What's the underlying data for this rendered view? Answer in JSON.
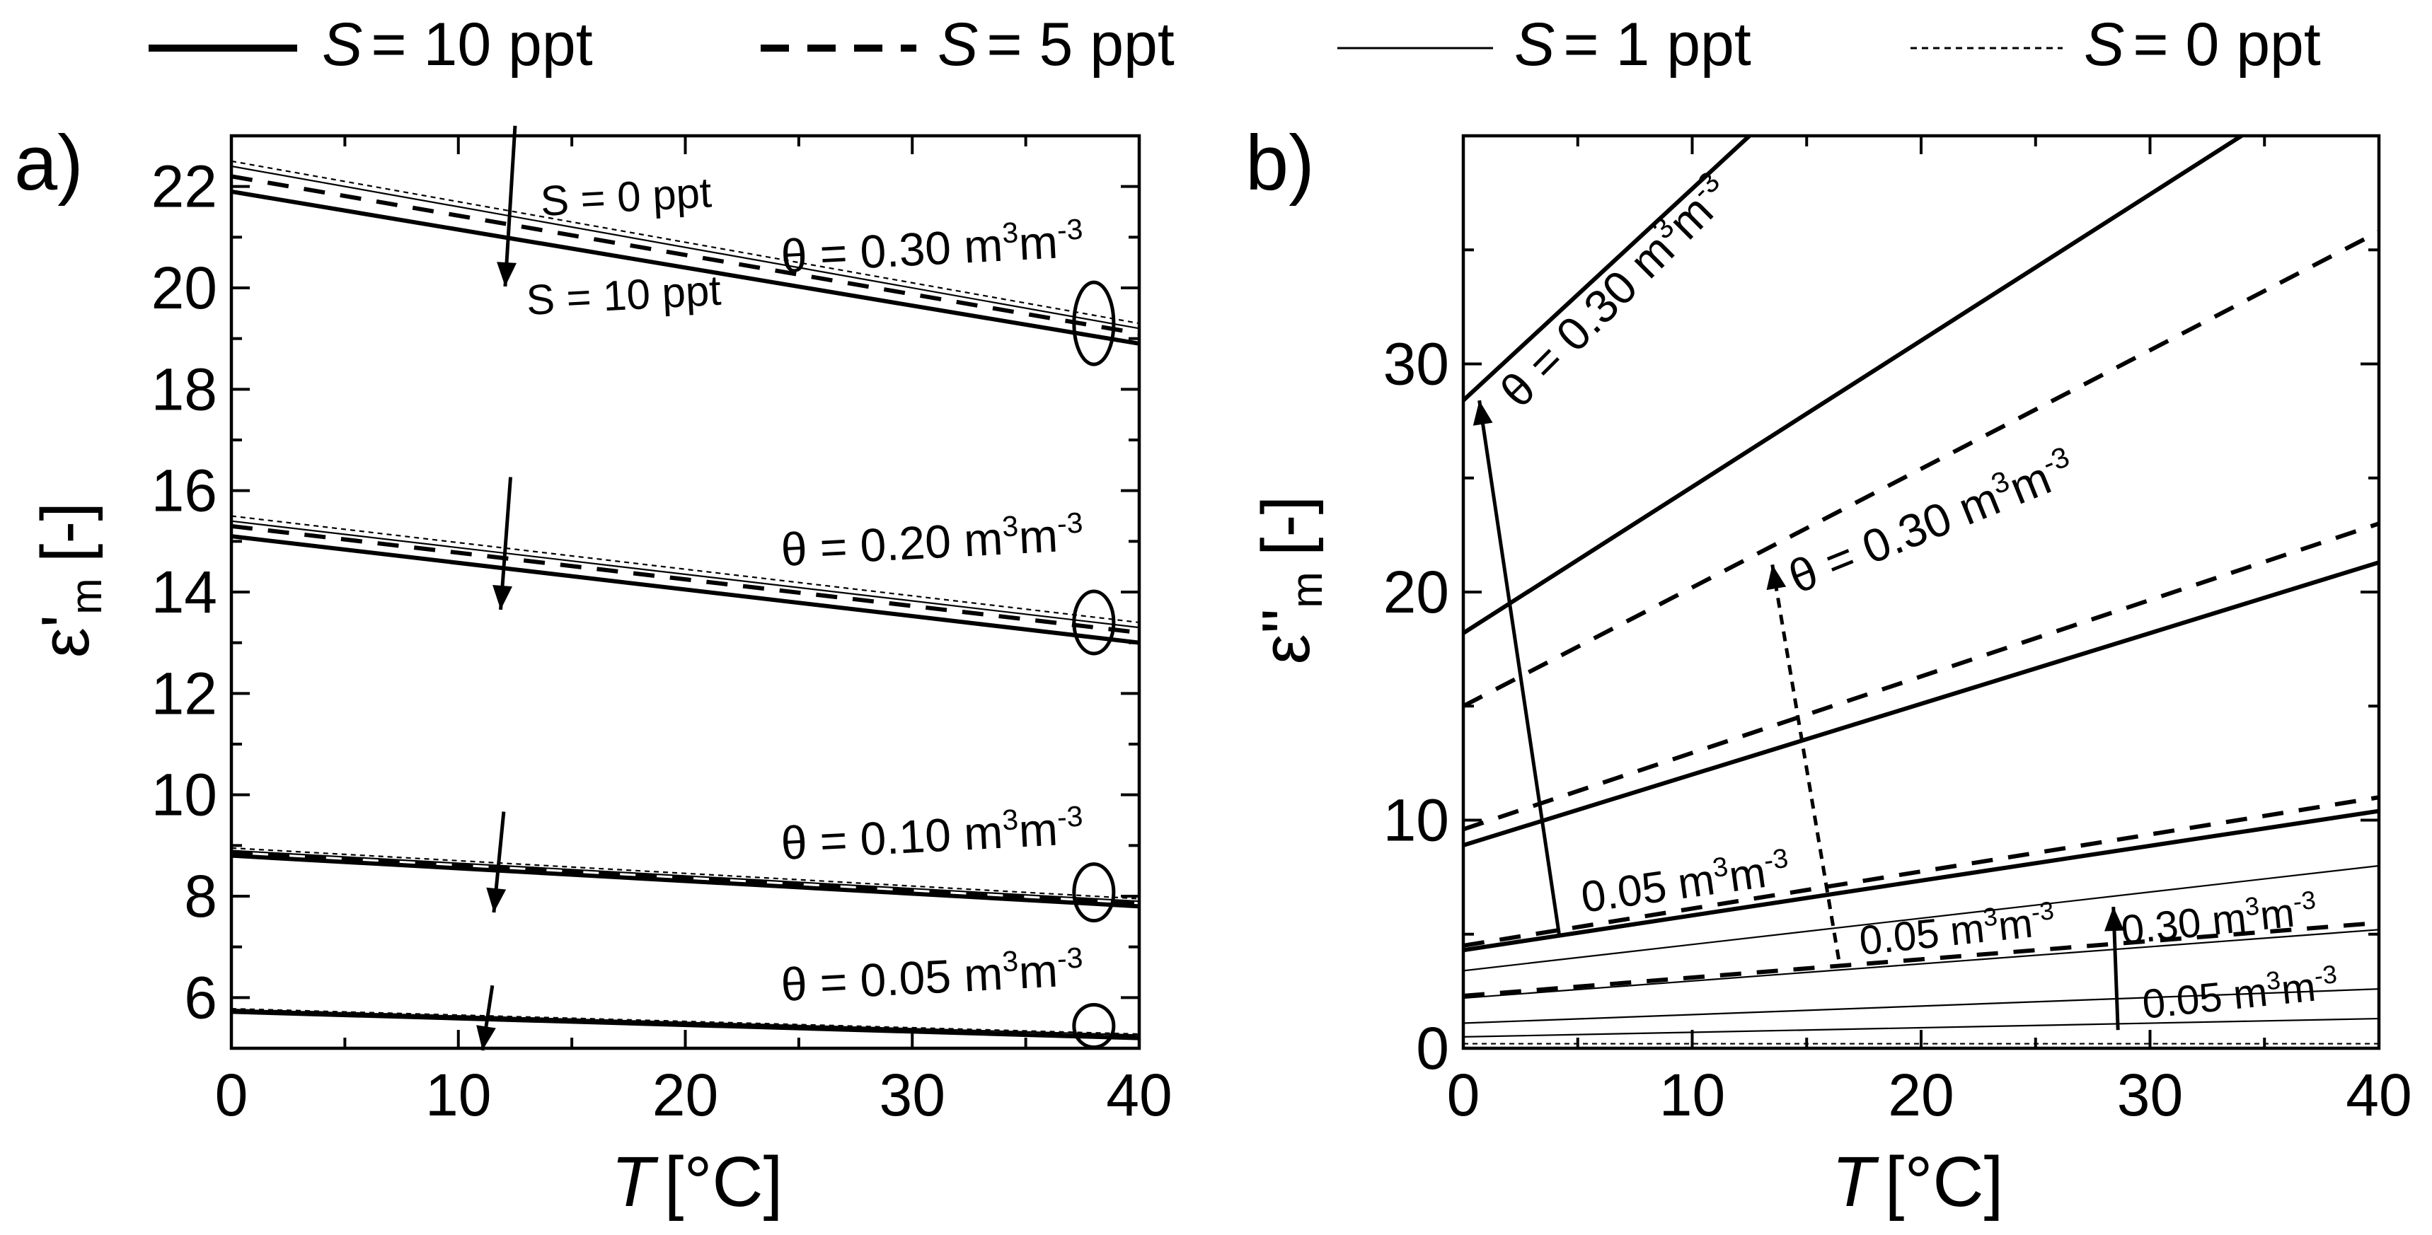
{
  "legend": {
    "items": [
      {
        "var": "S",
        "eq": "= 10 ppt",
        "style": "thick-solid"
      },
      {
        "var": "S",
        "eq": "= 5 ppt",
        "style": "thick-dashed"
      },
      {
        "var": "S",
        "eq": "= 1 ppt",
        "style": "thin-solid"
      },
      {
        "var": "S",
        "eq": "= 0 ppt",
        "style": "thin-dotted"
      }
    ]
  },
  "chart_data": [
    {
      "type": "line",
      "panel_label": "a)",
      "xlabel_var": "T",
      "xlabel_unit": "[°C]",
      "ylabel_sym": "ε'",
      "ylabel_sub": "m",
      "ylabel_unit": "[-]",
      "xlim": [
        0,
        40
      ],
      "ylim": [
        5,
        23
      ],
      "xticks": [
        "0",
        "10",
        "20",
        "30",
        "40"
      ],
      "yticks": [
        "6",
        "8",
        "10",
        "12",
        "14",
        "16",
        "18",
        "20",
        "22"
      ],
      "x": [
        0,
        40
      ],
      "groups": [
        {
          "theta_label": "θ = 0.30 m³m⁻³",
          "series": [
            {
              "name": "S = 10 ppt",
              "values": [
                21.9,
                18.9
              ]
            },
            {
              "name": "S = 5 ppt",
              "values": [
                22.2,
                19.1
              ]
            },
            {
              "name": "S = 1 ppt",
              "values": [
                22.4,
                19.2
              ]
            },
            {
              "name": "S = 0 ppt",
              "values": [
                22.5,
                19.3
              ]
            }
          ]
        },
        {
          "theta_label": "θ = 0.20 m³m⁻³",
          "series": [
            {
              "name": "S = 10 ppt",
              "values": [
                15.1,
                13.0
              ]
            },
            {
              "name": "S = 5 ppt",
              "values": [
                15.3,
                13.2
              ]
            },
            {
              "name": "S = 1 ppt",
              "values": [
                15.4,
                13.3
              ]
            },
            {
              "name": "S = 0 ppt",
              "values": [
                15.5,
                13.4
              ]
            }
          ]
        },
        {
          "theta_label": "θ = 0.10 m³m⁻³",
          "series": [
            {
              "name": "S = 10 ppt",
              "values": [
                8.8,
                7.8
              ]
            },
            {
              "name": "S = 5 ppt",
              "values": [
                8.85,
                7.85
              ]
            },
            {
              "name": "S = 1 ppt",
              "values": [
                8.9,
                7.9
              ]
            },
            {
              "name": "S = 0 ppt",
              "values": [
                8.95,
                7.95
              ]
            }
          ]
        },
        {
          "theta_label": "θ = 0.05 m³m⁻³",
          "series": [
            {
              "name": "S = 10 ppt",
              "values": [
                5.72,
                5.2
              ]
            },
            {
              "name": "S = 5 ppt",
              "values": [
                5.74,
                5.23
              ]
            },
            {
              "name": "S = 1 ppt",
              "values": [
                5.76,
                5.26
              ]
            },
            {
              "name": "S = 0 ppt",
              "values": [
                5.78,
                5.28
              ]
            }
          ]
        }
      ],
      "annotations": [
        {
          "text": "S = 0 ppt"
        },
        {
          "text": "S = 10 ppt"
        }
      ]
    },
    {
      "type": "line",
      "panel_label": "b)",
      "xlabel_var": "T",
      "xlabel_unit": "[°C]",
      "ylabel_sym": "ε''",
      "ylabel_sub": "m",
      "ylabel_unit": "[-]",
      "xlim": [
        0,
        40
      ],
      "ylim": [
        0,
        40
      ],
      "xticks": [
        "0",
        "10",
        "20",
        "30",
        "40"
      ],
      "yticks": [
        "0",
        "10",
        "20",
        "30"
      ],
      "series": [
        {
          "name": "S = 10 ppt, θ = 0.30",
          "x": [
            0,
            12.5
          ],
          "values": [
            28.4,
            40
          ]
        },
        {
          "name": "S = 10 ppt, θ = 0.20",
          "x": [
            0,
            34
          ],
          "values": [
            18.2,
            40
          ]
        },
        {
          "name": "S = 10 ppt, θ = 0.10",
          "x": [
            0,
            40
          ],
          "values": [
            8.9,
            21.3
          ]
        },
        {
          "name": "S = 10 ppt, θ = 0.05",
          "x": [
            0,
            40
          ],
          "values": [
            4.3,
            10.4
          ]
        },
        {
          "name": "S = 5 ppt, θ = 0.30",
          "x": [
            0,
            40
          ],
          "values": [
            15.0,
            35.8
          ]
        },
        {
          "name": "S = 5 ppt, θ = 0.20",
          "x": [
            0,
            40
          ],
          "values": [
            9.6,
            23.0
          ]
        },
        {
          "name": "S = 5 ppt, θ = 0.10",
          "x": [
            0,
            40
          ],
          "values": [
            4.5,
            11.0
          ]
        },
        {
          "name": "S = 5 ppt, θ = 0.05",
          "x": [
            0,
            40
          ],
          "values": [
            2.3,
            5.5
          ]
        },
        {
          "name": "S = 1 ppt, θ = 0.30",
          "x": [
            0,
            40
          ],
          "values": [
            3.4,
            8.0
          ]
        },
        {
          "name": "S = 1 ppt, θ = 0.20",
          "x": [
            0,
            40
          ],
          "values": [
            2.2,
            5.2
          ]
        },
        {
          "name": "S = 1 ppt, θ = 0.10",
          "x": [
            0,
            40
          ],
          "values": [
            1.1,
            2.6
          ]
        },
        {
          "name": "S = 1 ppt, θ = 0.05",
          "x": [
            0,
            40
          ],
          "values": [
            0.5,
            1.3
          ]
        },
        {
          "name": "S = 0 ppt",
          "x": [
            0,
            40
          ],
          "values": [
            0.2,
            0.2
          ]
        }
      ],
      "annotations": [
        {
          "text": "θ = 0.30 m³m⁻³"
        },
        {
          "text": "θ = 0.30 m³m⁻³"
        },
        {
          "text": "0.05 m³m⁻³"
        },
        {
          "text": "0.05 m³m⁻³"
        },
        {
          "text": "0.30 m³m⁻³"
        },
        {
          "text": "0.05 m³m⁻³"
        }
      ]
    }
  ]
}
